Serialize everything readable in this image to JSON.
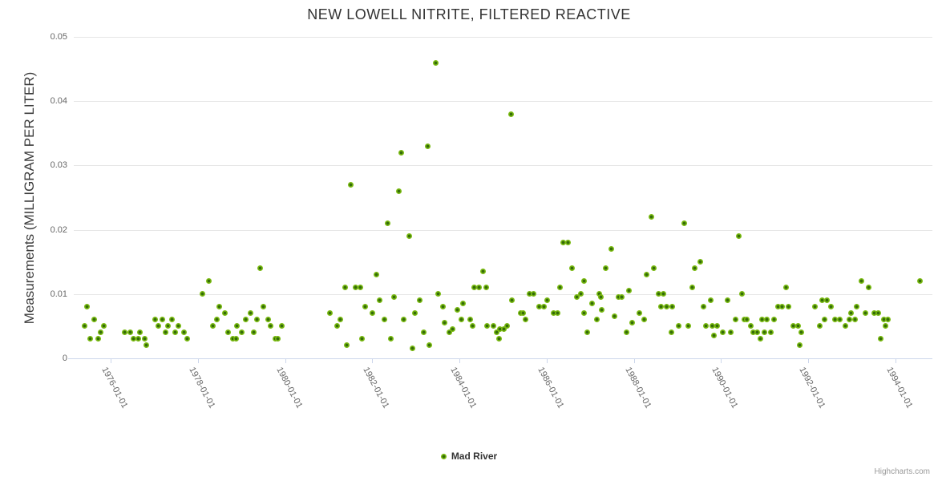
{
  "title": "NEW LOWELL NITRITE, FILTERED REACTIVE",
  "legend": {
    "series_label": "Mad River"
  },
  "credits": "Highcharts.com",
  "colors": {
    "title_text": "#333333",
    "axis_text": "#666666",
    "grid": "#e6e6e6",
    "axis_line": "#ccd6eb",
    "point_outer": "#7aba12",
    "point_inner": "#346c08"
  },
  "chart_data": {
    "type": "scatter",
    "title": "NEW LOWELL NITRITE, FILTERED REACTIVE",
    "xlabel": "",
    "ylabel": "Measurements (MILLIGRAM PER LITER)",
    "xlim": [
      1975.15,
      1994.85
    ],
    "ylim": [
      0,
      0.05
    ],
    "grid": true,
    "legend_position": "bottom-center",
    "y_ticks": [
      0,
      0.01,
      0.02,
      0.03,
      0.04,
      0.05
    ],
    "y_tick_labels": [
      "0",
      "0.01",
      "0.02",
      "0.03",
      "0.04",
      "0.05"
    ],
    "x_ticks": [
      1976,
      1978,
      1980,
      1982,
      1984,
      1986,
      1988,
      1990,
      1992,
      1994
    ],
    "x_tick_labels": [
      "1976-01-01",
      "1978-01-01",
      "1980-01-01",
      "1982-01-01",
      "1984-01-01",
      "1986-01-01",
      "1988-01-01",
      "1990-01-01",
      "1992-01-01",
      "1994-01-01"
    ],
    "series": [
      {
        "name": "Mad River",
        "points": [
          [
            1975.4,
            0.005
          ],
          [
            1975.46,
            0.008
          ],
          [
            1975.53,
            0.003
          ],
          [
            1975.62,
            0.006
          ],
          [
            1975.72,
            0.003
          ],
          [
            1975.77,
            0.004
          ],
          [
            1975.84,
            0.005
          ],
          [
            1976.32,
            0.004
          ],
          [
            1976.45,
            0.004
          ],
          [
            1976.52,
            0.003
          ],
          [
            1976.63,
            0.003
          ],
          [
            1976.67,
            0.004
          ],
          [
            1976.78,
            0.003
          ],
          [
            1976.82,
            0.002
          ],
          [
            1977.02,
            0.006
          ],
          [
            1977.09,
            0.005
          ],
          [
            1977.18,
            0.006
          ],
          [
            1977.26,
            0.004
          ],
          [
            1977.31,
            0.005
          ],
          [
            1977.4,
            0.006
          ],
          [
            1977.48,
            0.004
          ],
          [
            1977.55,
            0.005
          ],
          [
            1977.68,
            0.004
          ],
          [
            1977.75,
            0.003
          ],
          [
            1978.1,
            0.01
          ],
          [
            1978.25,
            0.012
          ],
          [
            1978.34,
            0.005
          ],
          [
            1978.43,
            0.006
          ],
          [
            1978.49,
            0.008
          ],
          [
            1978.61,
            0.007
          ],
          [
            1978.69,
            0.004
          ],
          [
            1978.8,
            0.003
          ],
          [
            1978.87,
            0.003
          ],
          [
            1978.89,
            0.005
          ],
          [
            1979.0,
            0.004
          ],
          [
            1979.09,
            0.006
          ],
          [
            1979.2,
            0.007
          ],
          [
            1979.28,
            0.004
          ],
          [
            1979.35,
            0.006
          ],
          [
            1979.42,
            0.014
          ],
          [
            1979.5,
            0.008
          ],
          [
            1979.61,
            0.006
          ],
          [
            1979.66,
            0.005
          ],
          [
            1979.77,
            0.003
          ],
          [
            1979.84,
            0.003
          ],
          [
            1979.92,
            0.005
          ],
          [
            1981.02,
            0.007
          ],
          [
            1981.2,
            0.005
          ],
          [
            1981.27,
            0.006
          ],
          [
            1981.37,
            0.011
          ],
          [
            1981.42,
            0.002
          ],
          [
            1981.51,
            0.027
          ],
          [
            1981.61,
            0.011
          ],
          [
            1981.73,
            0.011
          ],
          [
            1981.77,
            0.003
          ],
          [
            1981.84,
            0.008
          ],
          [
            1982.01,
            0.007
          ],
          [
            1982.1,
            0.013
          ],
          [
            1982.16,
            0.009
          ],
          [
            1982.28,
            0.006
          ],
          [
            1982.36,
            0.021
          ],
          [
            1982.43,
            0.003
          ],
          [
            1982.5,
            0.0095
          ],
          [
            1982.61,
            0.026
          ],
          [
            1982.67,
            0.032
          ],
          [
            1982.72,
            0.006
          ],
          [
            1982.85,
            0.019
          ],
          [
            1982.93,
            0.0015
          ],
          [
            1982.98,
            0.007
          ],
          [
            1983.09,
            0.009
          ],
          [
            1983.18,
            0.004
          ],
          [
            1983.28,
            0.033
          ],
          [
            1983.31,
            0.002
          ],
          [
            1983.46,
            0.046
          ],
          [
            1983.51,
            0.01
          ],
          [
            1983.62,
            0.008
          ],
          [
            1983.66,
            0.0055
          ],
          [
            1983.77,
            0.004
          ],
          [
            1983.84,
            0.0045
          ],
          [
            1983.95,
            0.0075
          ],
          [
            1984.05,
            0.006
          ],
          [
            1984.08,
            0.0085
          ],
          [
            1984.25,
            0.006
          ],
          [
            1984.3,
            0.005
          ],
          [
            1984.34,
            0.011
          ],
          [
            1984.45,
            0.011
          ],
          [
            1984.54,
            0.0135
          ],
          [
            1984.61,
            0.011
          ],
          [
            1984.63,
            0.005
          ],
          [
            1984.78,
            0.005
          ],
          [
            1984.85,
            0.004
          ],
          [
            1984.91,
            0.003
          ],
          [
            1984.93,
            0.0045
          ],
          [
            1985.02,
            0.0045
          ],
          [
            1985.09,
            0.005
          ],
          [
            1985.18,
            0.038
          ],
          [
            1985.2,
            0.009
          ],
          [
            1985.4,
            0.007
          ],
          [
            1985.46,
            0.007
          ],
          [
            1985.51,
            0.006
          ],
          [
            1985.6,
            0.01
          ],
          [
            1985.7,
            0.01
          ],
          [
            1985.82,
            0.008
          ],
          [
            1985.93,
            0.008
          ],
          [
            1986.01,
            0.009
          ],
          [
            1986.16,
            0.007
          ],
          [
            1986.25,
            0.007
          ],
          [
            1986.3,
            0.011
          ],
          [
            1986.38,
            0.018
          ],
          [
            1986.49,
            0.018
          ],
          [
            1986.58,
            0.014
          ],
          [
            1986.69,
            0.0095
          ],
          [
            1986.78,
            0.01
          ],
          [
            1986.85,
            0.012
          ],
          [
            1986.86,
            0.007
          ],
          [
            1986.94,
            0.004
          ],
          [
            1987.04,
            0.0085
          ],
          [
            1987.15,
            0.006
          ],
          [
            1987.2,
            0.01
          ],
          [
            1987.24,
            0.0095
          ],
          [
            1987.27,
            0.0075
          ],
          [
            1987.35,
            0.014
          ],
          [
            1987.49,
            0.017
          ],
          [
            1987.55,
            0.0065
          ],
          [
            1987.64,
            0.0095
          ],
          [
            1987.73,
            0.0095
          ],
          [
            1987.83,
            0.004
          ],
          [
            1987.88,
            0.0105
          ],
          [
            1987.97,
            0.0055
          ],
          [
            1988.12,
            0.007
          ],
          [
            1988.23,
            0.006
          ],
          [
            1988.3,
            0.013
          ],
          [
            1988.41,
            0.022
          ],
          [
            1988.45,
            0.014
          ],
          [
            1988.56,
            0.01
          ],
          [
            1988.63,
            0.008
          ],
          [
            1988.67,
            0.01
          ],
          [
            1988.76,
            0.008
          ],
          [
            1988.87,
            0.004
          ],
          [
            1988.89,
            0.008
          ],
          [
            1989.03,
            0.005
          ],
          [
            1989.16,
            0.021
          ],
          [
            1989.24,
            0.005
          ],
          [
            1989.35,
            0.011
          ],
          [
            1989.4,
            0.014
          ],
          [
            1989.53,
            0.015
          ],
          [
            1989.6,
            0.008
          ],
          [
            1989.66,
            0.005
          ],
          [
            1989.77,
            0.009
          ],
          [
            1989.81,
            0.005
          ],
          [
            1989.84,
            0.0035
          ],
          [
            1989.92,
            0.005
          ],
          [
            1990.04,
            0.004
          ],
          [
            1990.15,
            0.009
          ],
          [
            1990.23,
            0.004
          ],
          [
            1990.34,
            0.006
          ],
          [
            1990.41,
            0.019
          ],
          [
            1990.48,
            0.01
          ],
          [
            1990.54,
            0.006
          ],
          [
            1990.59,
            0.006
          ],
          [
            1990.69,
            0.005
          ],
          [
            1990.74,
            0.004
          ],
          [
            1990.83,
            0.004
          ],
          [
            1990.91,
            0.003
          ],
          [
            1990.94,
            0.006
          ],
          [
            1991.0,
            0.004
          ],
          [
            1991.05,
            0.006
          ],
          [
            1991.14,
            0.004
          ],
          [
            1991.22,
            0.006
          ],
          [
            1991.31,
            0.008
          ],
          [
            1991.4,
            0.008
          ],
          [
            1991.49,
            0.011
          ],
          [
            1991.55,
            0.008
          ],
          [
            1991.66,
            0.005
          ],
          [
            1991.77,
            0.005
          ],
          [
            1991.81,
            0.002
          ],
          [
            1991.84,
            0.004
          ],
          [
            1992.16,
            0.008
          ],
          [
            1992.27,
            0.005
          ],
          [
            1992.32,
            0.009
          ],
          [
            1992.38,
            0.006
          ],
          [
            1992.43,
            0.009
          ],
          [
            1992.52,
            0.008
          ],
          [
            1992.61,
            0.006
          ],
          [
            1992.72,
            0.006
          ],
          [
            1992.85,
            0.005
          ],
          [
            1992.94,
            0.006
          ],
          [
            1992.98,
            0.007
          ],
          [
            1993.07,
            0.006
          ],
          [
            1993.11,
            0.008
          ],
          [
            1993.22,
            0.012
          ],
          [
            1993.31,
            0.007
          ],
          [
            1993.38,
            0.011
          ],
          [
            1993.51,
            0.007
          ],
          [
            1993.6,
            0.007
          ],
          [
            1993.66,
            0.003
          ],
          [
            1993.73,
            0.006
          ],
          [
            1993.78,
            0.005
          ],
          [
            1993.82,
            0.006
          ],
          [
            1994.57,
            0.012
          ]
        ]
      }
    ]
  }
}
